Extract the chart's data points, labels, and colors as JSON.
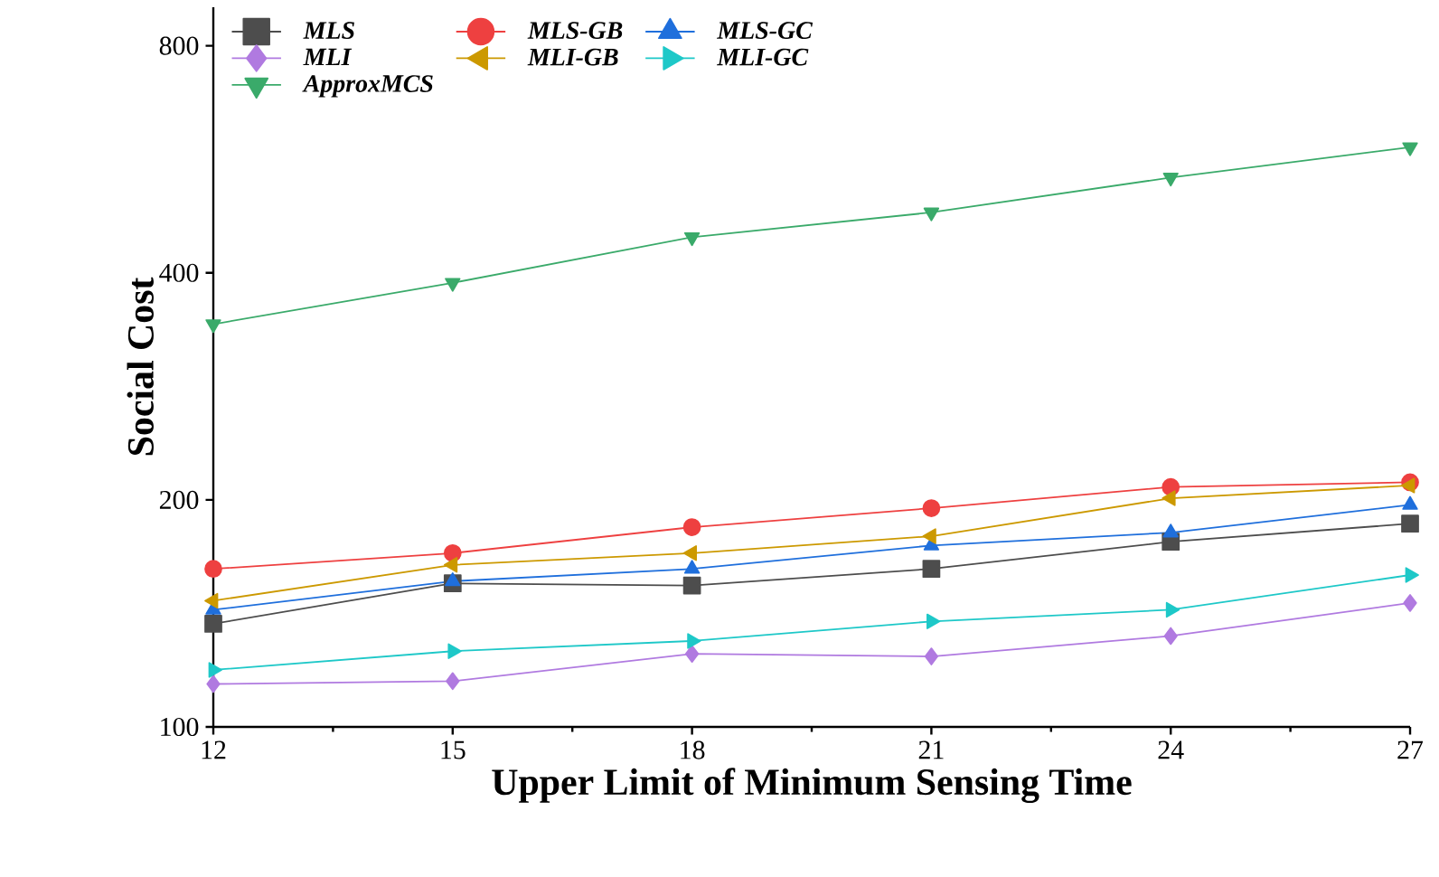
{
  "chart_data": {
    "type": "line",
    "xlabel": "Upper Limit of Minimum Sensing Time",
    "ylabel": "Social Cost",
    "x": [
      12,
      15,
      18,
      21,
      24,
      27
    ],
    "xlim": [
      12,
      27
    ],
    "xticks": [
      12,
      15,
      18,
      21,
      24,
      27
    ],
    "log": "y",
    "ylim": [
      100,
      900
    ],
    "yticks": [
      100,
      200,
      400,
      800
    ],
    "legend": "top left",
    "grid": false,
    "series": [
      {
        "name": "MLS",
        "color": "#4d4d4d",
        "marker": "square",
        "values": [
          137,
          155,
          154,
          162,
          176,
          186
        ]
      },
      {
        "name": "MLS-GB",
        "color": "#ee4040",
        "marker": "circle",
        "values": [
          162,
          170,
          184,
          195,
          208,
          211
        ]
      },
      {
        "name": "MLS-GC",
        "color": "#1f6fdc",
        "marker": "triangle",
        "values": [
          143,
          156,
          162,
          174,
          181,
          197
        ]
      },
      {
        "name": "MLI",
        "color": "#b07ae0",
        "marker": "diamond",
        "values": [
          114,
          115,
          125,
          124,
          132,
          146
        ]
      },
      {
        "name": "MLI-GB",
        "color": "#cc9900",
        "marker": "triangle-left",
        "values": [
          147,
          164,
          170,
          179,
          201,
          209
        ]
      },
      {
        "name": "MLI-GC",
        "color": "#1ec8c8",
        "marker": "triangle-right",
        "values": [
          119,
          126,
          130,
          138,
          143,
          159
        ]
      },
      {
        "name": "ApproxMCS",
        "color": "#3aaa6a",
        "marker": "triangle-down",
        "values": [
          342,
          388,
          446,
          481,
          535,
          587
        ]
      }
    ]
  }
}
